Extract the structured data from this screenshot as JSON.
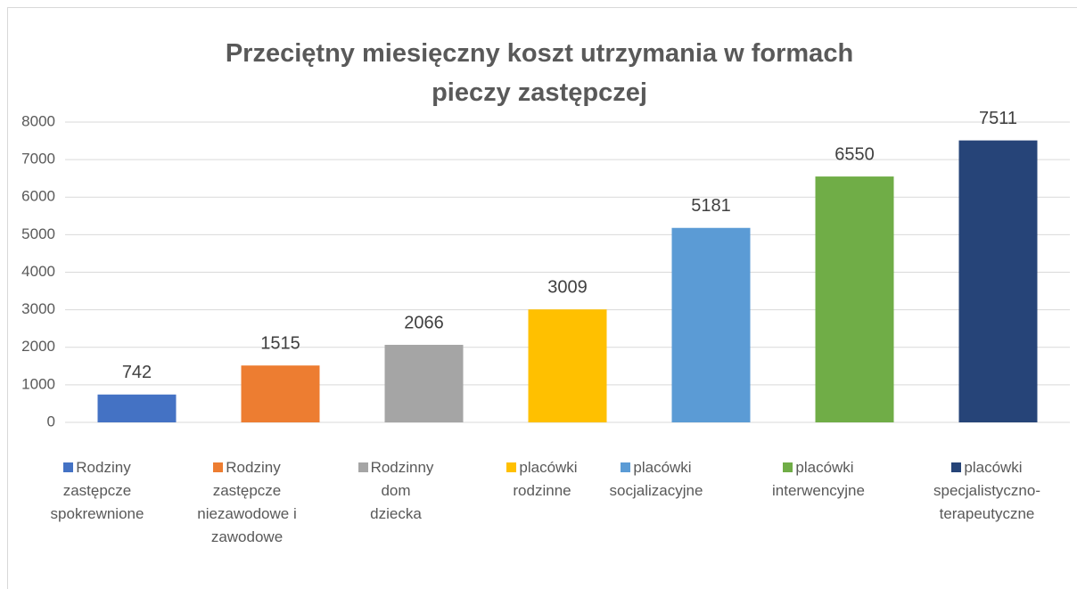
{
  "chart_data": {
    "type": "bar",
    "title": "Przeciętny miesięczny koszt utrzymania w formach pieczy zastępczej",
    "categories": [
      null
    ],
    "series": [
      {
        "name": "Rodziny zastępcze spokrewnione",
        "color": "#4472c4",
        "values": [
          742
        ]
      },
      {
        "name": "Rodziny zastępcze niezawodowe i zawodowe",
        "color": "#ed7d31",
        "values": [
          1515
        ]
      },
      {
        "name": "Rodzinny dom dziecka",
        "color": "#a5a5a5",
        "values": [
          2066
        ]
      },
      {
        "name": "placówki rodzinne",
        "color": "#ffc000",
        "values": [
          3009
        ]
      },
      {
        "name": "placówki socjalizacyjne",
        "color": "#5b9bd5",
        "values": [
          5181
        ]
      },
      {
        "name": "placówki interwencyjne",
        "color": "#70ad47",
        "values": [
          6550
        ]
      },
      {
        "name": "placówki specjalistyczno-terapeutyczne",
        "color": "#264478",
        "values": [
          7511
        ]
      }
    ],
    "ylim": [
      0,
      8000
    ],
    "yticks": [
      0,
      1000,
      2000,
      3000,
      4000,
      5000,
      6000,
      7000,
      8000
    ],
    "grid": true,
    "legend": "bottom"
  }
}
